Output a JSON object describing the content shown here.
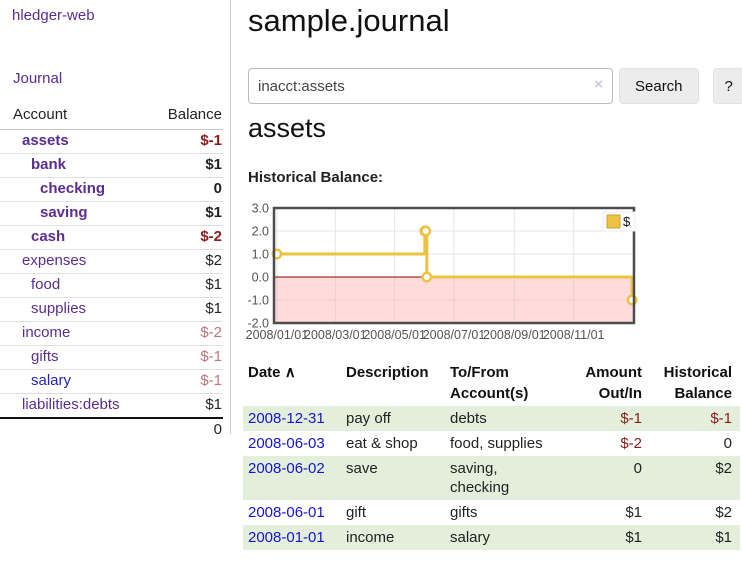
{
  "sidebar": {
    "brand": "hledger-web",
    "journal_label": "Journal",
    "table": {
      "account_header": "Account",
      "balance_header": "Balance",
      "rows": [
        {
          "name": "assets",
          "level": 1,
          "bold": true,
          "name_style": "purple",
          "value": "$-1",
          "value_style": "negative-strong"
        },
        {
          "name": "bank",
          "level": 2,
          "bold": true,
          "name_style": "purple",
          "value": "$1",
          "value_style": "normal"
        },
        {
          "name": "checking",
          "level": 3,
          "bold": true,
          "name_style": "purple",
          "value": "0",
          "value_style": "normal"
        },
        {
          "name": "saving",
          "level": 3,
          "bold": true,
          "name_style": "purple",
          "value": "$1",
          "value_style": "normal"
        },
        {
          "name": "cash",
          "level": 2,
          "bold": true,
          "name_style": "purple",
          "value": "$-2",
          "value_style": "negative-strong"
        },
        {
          "name": "expenses",
          "level": 1,
          "bold": false,
          "name_style": "purple",
          "value": "$2",
          "value_style": "normal"
        },
        {
          "name": "food",
          "level": 2,
          "bold": false,
          "name_style": "purple",
          "value": "$1",
          "value_style": "normal"
        },
        {
          "name": "supplies",
          "level": 2,
          "bold": false,
          "name_style": "purple",
          "value": "$1",
          "value_style": "normal"
        },
        {
          "name": "income",
          "level": 1,
          "bold": false,
          "name_style": "purple",
          "value": "$-2",
          "value_style": "negative-muted"
        },
        {
          "name": "gifts",
          "level": 2,
          "bold": false,
          "name_style": "purple",
          "value": "$-1",
          "value_style": "negative-muted"
        },
        {
          "name": "salary",
          "level": 2,
          "bold": false,
          "name_style": "blue",
          "value": "$-1",
          "value_style": "negative-muted"
        },
        {
          "name": "liabilities:debts",
          "level": 1,
          "bold": false,
          "name_style": "purple",
          "value": "$1",
          "value_style": "normal"
        }
      ],
      "total": "0"
    }
  },
  "header": {
    "title": "sample.journal"
  },
  "search": {
    "value": "inacct:assets",
    "clear_icon": "×",
    "button_label": "Search",
    "help_label": "?"
  },
  "account_page": {
    "heading": "assets",
    "chart_label": "Historical Balance:"
  },
  "chart_data": {
    "type": "line",
    "line_style": "steps",
    "title": "Historical Balance",
    "series": [
      {
        "name": "$",
        "color": "#edc240",
        "points": [
          [
            "2008-01-01",
            1
          ],
          [
            "2008-06-01",
            2
          ],
          [
            "2008-06-02",
            2
          ],
          [
            "2008-06-03",
            0
          ],
          [
            "2008-12-31",
            -1
          ]
        ]
      }
    ],
    "x_range": [
      "2007-12-29",
      "2009-01-02"
    ],
    "y_range": [
      -2,
      3
    ],
    "x_ticks": [
      {
        "date": "2008-01-01",
        "label": "2008/01/01"
      },
      {
        "date": "2008-03-01",
        "label": "2008/03/01"
      },
      {
        "date": "2008-05-01",
        "label": "2008/05/01"
      },
      {
        "date": "2008-07-01",
        "label": "2008/07/01"
      },
      {
        "date": "2008-09-01",
        "label": "2008/09/01"
      },
      {
        "date": "2008-11-01",
        "label": "2008/11/01"
      },
      {
        "date": "2009-01-01",
        "label": ""
      }
    ],
    "y_ticks": [
      {
        "value": 3,
        "label": "3.0"
      },
      {
        "value": 2,
        "label": "2.0"
      },
      {
        "value": 1,
        "label": "1.0"
      },
      {
        "value": 0,
        "label": "0.0"
      },
      {
        "value": -1,
        "label": "-1.0"
      },
      {
        "value": -2,
        "label": "-2.0"
      }
    ],
    "legend": {
      "position": "top-right",
      "label": "$",
      "swatch_color": "#edc240"
    },
    "grid": true,
    "grid_color": "#e6e6e6",
    "border_color": "#4d4d4d",
    "tick_label_color": "#545454",
    "negative_region": {
      "below": 0,
      "fill": "rgba(255,160,160,0.38)",
      "zero_line_color": "#8b0000"
    }
  },
  "register": {
    "headers": {
      "date": "Date",
      "sort_indicator": "∧",
      "description": "Description",
      "accounts": "To/From Account(s)",
      "amount": "Amount Out/In",
      "balance": "Historical Balance"
    },
    "rows": [
      {
        "date": "2008-12-31",
        "description": "pay off",
        "accounts": "debts",
        "amount": "$-1",
        "balance": "$-1",
        "amount_negative": true,
        "balance_negative": true,
        "highlight": true
      },
      {
        "date": "2008-06-03",
        "description": "eat & shop",
        "accounts": "food, supplies",
        "amount": "$-2",
        "balance": "0",
        "amount_negative": true,
        "balance_negative": false,
        "highlight": false
      },
      {
        "date": "2008-06-02",
        "description": "save",
        "accounts": "saving, checking",
        "amount": "0",
        "balance": "$2",
        "amount_negative": false,
        "balance_negative": false,
        "highlight": true
      },
      {
        "date": "2008-06-01",
        "description": "gift",
        "accounts": "gifts",
        "amount": "$1",
        "balance": "$2",
        "amount_negative": false,
        "balance_negative": false,
        "highlight": false
      },
      {
        "date": "2008-01-01",
        "description": "income",
        "accounts": "salary",
        "amount": "$1",
        "balance": "$1",
        "amount_negative": false,
        "balance_negative": false,
        "highlight": true
      }
    ]
  },
  "colors": {
    "link_purple": "#5b2d90",
    "link_blue": "#2222cc",
    "date_link_blue": "#1414d2",
    "negative_strong": "#8c1b1b",
    "negative_muted": "#c2717c",
    "row_highlight_green": "#e3efdb",
    "chart_line_yellow": "#edc240",
    "chart_negative_pink": "#fbdfdf",
    "button_gray": "#ececec"
  }
}
